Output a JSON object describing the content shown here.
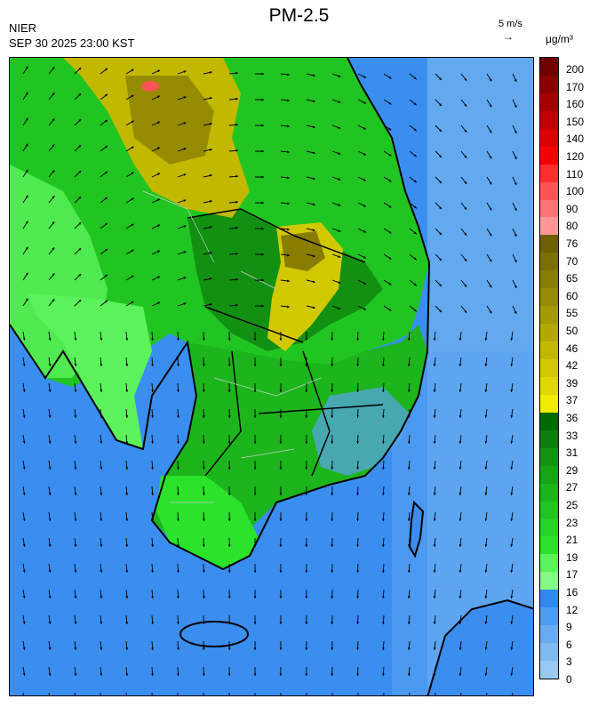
{
  "header": {
    "title": "PM-2.5",
    "org": "NIER",
    "timestamp": "SEP 30 2025 23:00 KST",
    "wind_reference": "5 m/s",
    "wind_reference_arrow": "→",
    "unit": "μg/m³"
  },
  "map": {
    "variable": "PM-2.5",
    "overlay": "wind vectors",
    "region": "Korean Peninsula"
  },
  "colorbar": {
    "labels": [
      "200",
      "170",
      "160",
      "150",
      "140",
      "120",
      "110",
      "100",
      "90",
      "80",
      "76",
      "70",
      "65",
      "60",
      "55",
      "50",
      "46",
      "42",
      "39",
      "37",
      "36",
      "33",
      "31",
      "29",
      "27",
      "25",
      "23",
      "21",
      "19",
      "17",
      "16",
      "12",
      "9",
      "6",
      "3",
      "0"
    ],
    "colors": [
      "#6e0000",
      "#8a0000",
      "#a50000",
      "#c00000",
      "#dc0000",
      "#f50000",
      "#ff2d2d",
      "#ff5555",
      "#ff7575",
      "#ff9797",
      "#6f5f00",
      "#7b6f00",
      "#887d00",
      "#958b00",
      "#a39900",
      "#b2a800",
      "#c2b800",
      "#d2c800",
      "#e0d800",
      "#f1ec00",
      "#006a00",
      "#0d7d0d",
      "#119311",
      "#16a416",
      "#1cb51c",
      "#21c521",
      "#25d525",
      "#2ae32a",
      "#5bf25b",
      "#85f885",
      "#3388f0",
      "#4e9cf0",
      "#67abf0",
      "#7fbaf0",
      "#98c9f0"
    ]
  }
}
